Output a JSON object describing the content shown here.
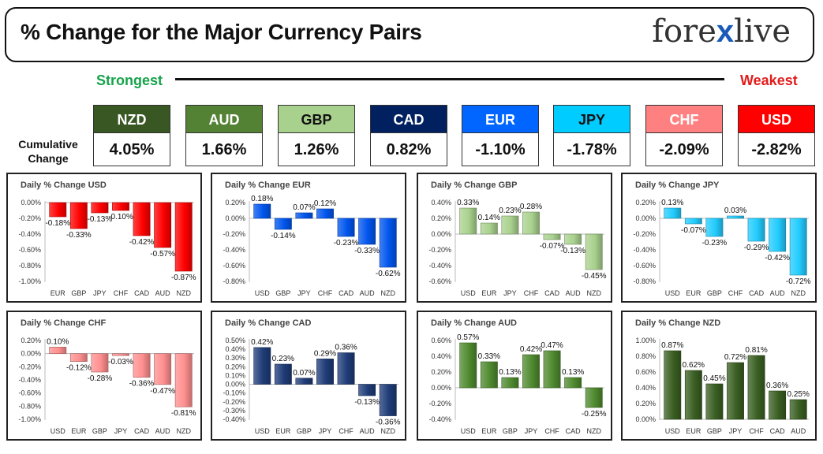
{
  "header": {
    "title": "% Change for the Major Currency Pairs",
    "logo_left": "fore",
    "logo_x": "x",
    "logo_right": "live"
  },
  "scale": {
    "strongest": "Strongest",
    "weakest": "Weakest"
  },
  "cumulative": {
    "label_line1": "Cumulative",
    "label_line2": "Change",
    "items": [
      {
        "code": "NZD",
        "value": "4.05%",
        "color": "#385723",
        "text": "#ffffff"
      },
      {
        "code": "AUD",
        "value": "1.66%",
        "color": "#548235",
        "text": "#ffffff"
      },
      {
        "code": "GBP",
        "value": "1.26%",
        "color": "#a9d18e",
        "text": "#111111"
      },
      {
        "code": "CAD",
        "value": "0.82%",
        "color": "#002060",
        "text": "#ffffff"
      },
      {
        "code": "EUR",
        "value": "-1.10%",
        "color": "#0066ff",
        "text": "#ffffff"
      },
      {
        "code": "JPY",
        "value": "-1.78%",
        "color": "#00ccff",
        "text": "#111111"
      },
      {
        "code": "CHF",
        "value": "-2.09%",
        "color": "#ff8080",
        "text": "#ffffff"
      },
      {
        "code": "USD",
        "value": "-2.82%",
        "color": "#ff0000",
        "text": "#ffffff"
      }
    ]
  },
  "chart_data": [
    {
      "type": "bar",
      "title": "Daily % Change USD",
      "categories": [
        "EUR",
        "GBP",
        "JPY",
        "CHF",
        "CAD",
        "AUD",
        "NZD"
      ],
      "values": [
        -0.18,
        -0.33,
        -0.13,
        -0.1,
        -0.42,
        -0.57,
        -0.87
      ],
      "ylim": [
        -1.0,
        0.0
      ],
      "ticks": [
        0,
        -0.2,
        -0.4,
        -0.6,
        -0.8,
        -1.0
      ],
      "color": "#ff0000",
      "label_color": "#111111",
      "tick_decimals": 2
    },
    {
      "type": "bar",
      "title": "Daily % Change EUR",
      "categories": [
        "USD",
        "GBP",
        "JPY",
        "CHF",
        "CAD",
        "AUD",
        "NZD"
      ],
      "values": [
        0.18,
        -0.14,
        0.07,
        0.12,
        -0.23,
        -0.33,
        -0.62
      ],
      "ylim": [
        -0.8,
        0.2
      ],
      "ticks": [
        0.2,
        0,
        -0.2,
        -0.4,
        -0.6,
        -0.8
      ],
      "color": "#0055ee",
      "label_color": "#111111",
      "tick_decimals": 2
    },
    {
      "type": "bar",
      "title": "Daily % Change GBP",
      "categories": [
        "USD",
        "EUR",
        "JPY",
        "CHF",
        "CAD",
        "AUD",
        "NZD"
      ],
      "values": [
        0.33,
        0.14,
        0.23,
        0.28,
        -0.07,
        -0.13,
        -0.45
      ],
      "ylim": [
        -0.6,
        0.4
      ],
      "ticks": [
        0.4,
        0.2,
        0,
        -0.2,
        -0.4,
        -0.6
      ],
      "color": "#a9d18e",
      "label_color": "#111111",
      "tick_decimals": 2
    },
    {
      "type": "bar",
      "title": "Daily % Change JPY",
      "categories": [
        "USD",
        "EUR",
        "GBP",
        "CHF",
        "CAD",
        "AUD",
        "NZD"
      ],
      "values": [
        0.13,
        -0.07,
        -0.23,
        0.03,
        -0.29,
        -0.42,
        -0.72
      ],
      "ylim": [
        -0.8,
        0.2
      ],
      "ticks": [
        0.2,
        0,
        -0.2,
        -0.4,
        -0.6,
        -0.8
      ],
      "color": "#22ccff",
      "label_color": "#111111",
      "tick_decimals": 2
    },
    {
      "type": "bar",
      "title": "Daily % Change CHF",
      "categories": [
        "USD",
        "EUR",
        "GBP",
        "JPY",
        "CAD",
        "AUD",
        "NZD"
      ],
      "values": [
        0.1,
        -0.12,
        -0.28,
        -0.03,
        -0.36,
        -0.47,
        -0.81
      ],
      "ylim": [
        -1.0,
        0.2
      ],
      "ticks": [
        0.2,
        0,
        -0.2,
        -0.4,
        -0.6,
        -0.8,
        -1.0
      ],
      "color": "#ff8f8f",
      "label_color": "#111111",
      "tick_decimals": 2
    },
    {
      "type": "bar",
      "title": "Daily % Change CAD",
      "categories": [
        "USD",
        "EUR",
        "GBP",
        "JPY",
        "CHF",
        "AUD",
        "NZD"
      ],
      "values": [
        0.42,
        0.23,
        0.07,
        0.29,
        0.36,
        -0.13,
        -0.36
      ],
      "ylim": [
        -0.4,
        0.5
      ],
      "ticks": [
        0.5,
        0.4,
        0.3,
        0.2,
        0.1,
        0,
        -0.1,
        -0.2,
        -0.3,
        -0.4
      ],
      "color": "#1f3c78",
      "label_color": "#111111",
      "tick_decimals": 2
    },
    {
      "type": "bar",
      "title": "Daily % Change AUD",
      "categories": [
        "USD",
        "EUR",
        "GBP",
        "JPY",
        "CHF",
        "CAD",
        "NZD"
      ],
      "values": [
        0.57,
        0.33,
        0.13,
        0.42,
        0.47,
        0.13,
        -0.25
      ],
      "ylim": [
        -0.4,
        0.6
      ],
      "ticks": [
        0.6,
        0.4,
        0.2,
        0,
        -0.2,
        -0.4
      ],
      "color": "#4f8a2f",
      "label_color": "#111111",
      "tick_decimals": 2
    },
    {
      "type": "bar",
      "title": "Daily % Change NZD",
      "categories": [
        "USD",
        "EUR",
        "GBP",
        "JPY",
        "CHF",
        "CAD",
        "AUD"
      ],
      "values": [
        0.87,
        0.62,
        0.45,
        0.72,
        0.81,
        0.36,
        0.25
      ],
      "ylim": [
        0,
        1.0
      ],
      "ticks": [
        1.0,
        0.8,
        0.6,
        0.4,
        0.2,
        0
      ],
      "color": "#3a5f22",
      "label_color": "#111111",
      "tick_decimals": 2
    }
  ]
}
